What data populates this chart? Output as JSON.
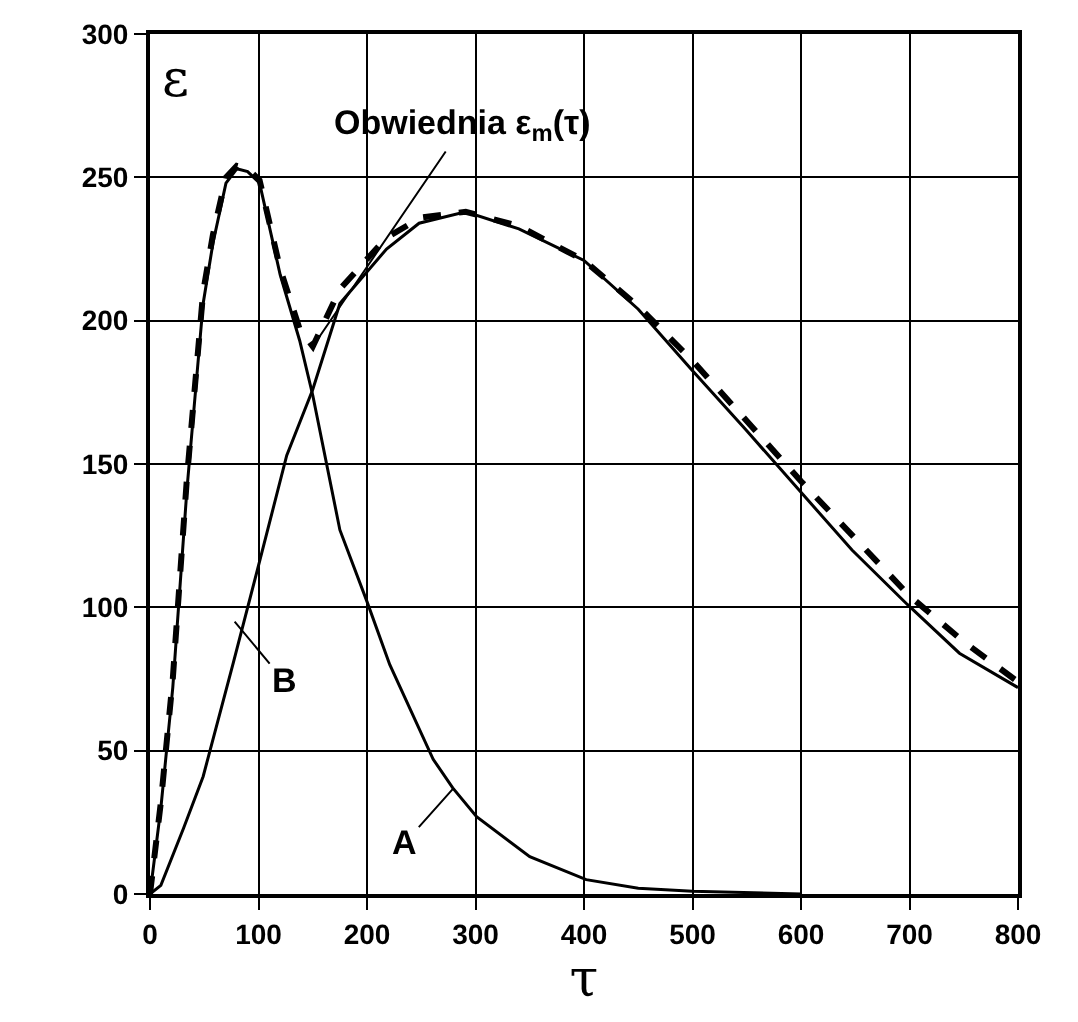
{
  "chart_data": {
    "type": "line",
    "xlabel": "τ",
    "ylabel": "ε",
    "xlim": [
      0,
      800
    ],
    "ylim": [
      0,
      300
    ],
    "xticks": [
      0,
      100,
      200,
      300,
      400,
      500,
      600,
      700,
      800
    ],
    "yticks": [
      0,
      50,
      100,
      150,
      200,
      250,
      300
    ],
    "grid": true,
    "marker": "none",
    "series": [
      {
        "color": "#000000",
        "line_style": "solid",
        "x": [
          0,
          10,
          21,
          34,
          49,
          58,
          70,
          80,
          90,
          101,
          120,
          138,
          150,
          175,
          200,
          221,
          261,
          279,
          301,
          350,
          402,
          450,
          500,
          600
        ],
        "values": [
          0,
          30,
          72,
          141,
          206,
          227,
          248,
          253,
          252,
          248,
          216,
          193,
          174,
          127,
          102,
          80,
          47,
          37,
          27,
          13,
          5,
          2,
          1,
          0
        ]
      },
      {
        "color": "#000000",
        "line_style": "solid",
        "x": [
          0,
          10,
          31,
          49,
          77,
          101,
          126,
          150,
          175,
          218,
          248,
          291,
          340,
          400,
          450,
          499,
          549,
          598,
          647,
          698,
          746,
          800
        ],
        "values": [
          0,
          3,
          23,
          41,
          81,
          116,
          153,
          176,
          206,
          225,
          234,
          238,
          232,
          221,
          204,
          183,
          162,
          141,
          120,
          101,
          84,
          72
        ]
      },
      {
        "color": "#000000",
        "line_style": "dashed",
        "x": [
          0,
          10,
          21,
          34,
          49,
          58,
          70,
          80,
          90,
          101,
          120,
          138,
          150,
          175,
          218,
          250,
          291,
          340,
          400,
          450,
          500,
          550,
          600,
          650,
          700,
          750,
          800
        ],
        "values": [
          0,
          32,
          75,
          145,
          210,
          230,
          250,
          254,
          253,
          249,
          218,
          197,
          191,
          211,
          229,
          236,
          238,
          233,
          221,
          205,
          186,
          165,
          144,
          124,
          104,
          88,
          74
        ]
      }
    ],
    "annotations": [
      {
        "text": "Obwiednia ε$_{m}$(τ)",
        "x": 150,
        "y": 191
      },
      {
        "text": "A",
        "x": 280,
        "y": 37
      },
      {
        "text": "B",
        "x": 78,
        "y": 95
      }
    ]
  }
}
